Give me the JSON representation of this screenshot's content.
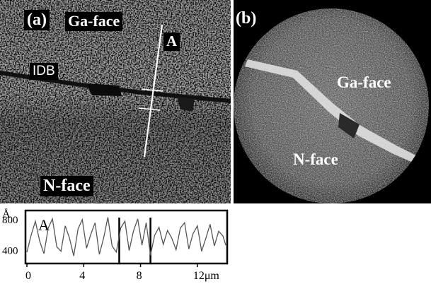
{
  "panel_a": {
    "tag": "(a)",
    "top_label": "Ga-face",
    "line_label": "A",
    "boundary_label": "IDB",
    "bottom_label": "N-face"
  },
  "panel_b": {
    "tag": "(b)",
    "upper_label": "Ga-face",
    "lower_label": "N-face"
  },
  "chart_data": {
    "type": "line",
    "title": "",
    "panel_letter": "A",
    "ylabel": "Å",
    "xlabel": "",
    "x_unit": "μm",
    "xlim": [
      0,
      14
    ],
    "ylim": [
      250,
      900
    ],
    "xticks": [
      0,
      4,
      8,
      12
    ],
    "xtick_labels": [
      "0",
      "4",
      "8",
      "12μm"
    ],
    "yticks": [
      800,
      400
    ],
    "ytick_labels": [
      "800",
      "400"
    ],
    "grid": false,
    "legend": "none",
    "markers_x": [
      6.5,
      8.7
    ],
    "series": [
      {
        "x": [
          0,
          0.3,
          0.6,
          0.9,
          1.2,
          1.5,
          1.8,
          2.1,
          2.4,
          2.7,
          3.0,
          3.3,
          3.6,
          3.9,
          4.2,
          4.5,
          4.8,
          5.1,
          5.4,
          5.7,
          6.0,
          6.3,
          6.6,
          6.9,
          7.2,
          7.5,
          7.8,
          8.1,
          8.4,
          8.7,
          9.0,
          9.3,
          9.6,
          9.9,
          10.2,
          10.5,
          10.8,
          11.1,
          11.4,
          11.7,
          12.0,
          12.3,
          12.6,
          12.9,
          13.2,
          13.5,
          13.8,
          14.0
        ],
        "values": [
          380,
          600,
          780,
          520,
          360,
          690,
          810,
          450,
          390,
          720,
          560,
          330,
          680,
          800,
          430,
          610,
          760,
          350,
          560,
          830,
          460,
          380,
          690,
          780,
          400,
          650,
          810,
          470,
          760,
          340,
          600,
          700,
          480,
          660,
          560,
          410,
          690,
          760,
          420,
          620,
          720,
          390,
          560,
          740,
          460,
          650,
          590,
          470
        ]
      }
    ]
  }
}
